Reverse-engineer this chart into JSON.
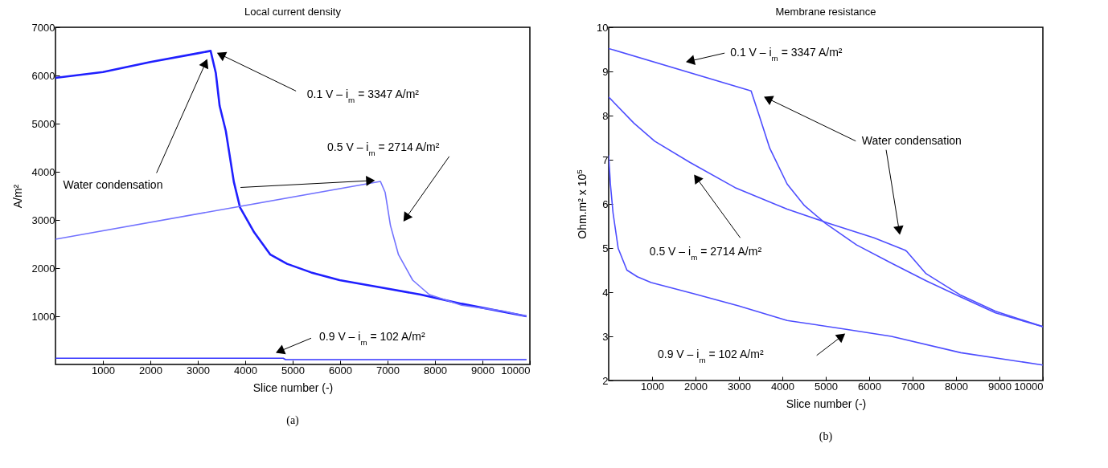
{
  "chart_data": [
    {
      "type": "line",
      "title": "Local current density",
      "xlabel": "Slice number (-)",
      "ylabel": "A/m²",
      "xlim": [
        0,
        10000
      ],
      "xticks": [
        1000,
        2000,
        3000,
        4000,
        5000,
        6000,
        7000,
        8000,
        9000,
        10000
      ],
      "ylim": [
        0,
        7000
      ],
      "yticks": [
        1000,
        2000,
        3000,
        4000,
        5000,
        6000,
        7000
      ],
      "grid": false,
      "series": [
        {
          "color": "#1f1fff",
          "x": [
            0,
            1000,
            2000,
            3000,
            3270,
            3380,
            3460,
            3590,
            3760,
            3890,
            4190,
            4530,
            4880,
            5390,
            5990,
            6850,
            7700,
            8560,
            9930
          ],
          "values": [
            5950,
            6070,
            6280,
            6460,
            6510,
            6050,
            5370,
            4850,
            3790,
            3260,
            2740,
            2280,
            2090,
            1910,
            1750,
            1600,
            1450,
            1260,
            1000
          ]
        },
        {
          "color": "#7272ff",
          "x": [
            0,
            6850,
            6950,
            7060,
            7230,
            7530,
            7880,
            8560,
            9420,
            9930
          ],
          "values": [
            2600,
            3800,
            3570,
            2890,
            2280,
            1750,
            1450,
            1230,
            1110,
            1000
          ]
        },
        {
          "color": "#3535ff",
          "x": [
            0,
            4800,
            4850,
            9930
          ],
          "values": [
            130,
            130,
            100,
            100
          ]
        }
      ],
      "annotations": [
        "0.1 V – i$_{m}$ = 3347 A/m²",
        "Water condensation",
        "0.5 V – i$_{m}$ = 2714 A/m²",
        "0.9 V – i$_{m}$ = 102 A/m²",
        "(a)"
      ]
    },
    {
      "type": "line",
      "title": "Membrane resistance",
      "xlabel": "Slice number (-)",
      "ylabel": "Ohm.m² x 10$^{5}$",
      "xlim": [
        0,
        10000
      ],
      "xticks": [
        1000,
        2000,
        3000,
        4000,
        5000,
        6000,
        7000,
        8000,
        9000,
        10000
      ],
      "ylim": [
        2,
        10
      ],
      "yticks": [
        2,
        3,
        4,
        5,
        6,
        7,
        8,
        9,
        10
      ],
      "grid": false,
      "series": [
        {
          "color": "#4d4dff",
          "x": [
            0,
            3280,
            3470,
            3710,
            4110,
            4510,
            4990,
            5710,
            6510,
            7310,
            8110,
            8910,
            10000
          ],
          "values": [
            9.52,
            8.56,
            7.99,
            7.26,
            6.45,
            5.96,
            5.56,
            5.07,
            4.66,
            4.26,
            3.89,
            3.53,
            3.22
          ]
        },
        {
          "color": "#4d4dff",
          "x": [
            0,
            580,
            1060,
            1870,
            2910,
            4110,
            5070,
            6110,
            6830,
            6870,
            7310,
            8110,
            8910,
            10000
          ],
          "values": [
            8.42,
            7.83,
            7.42,
            6.94,
            6.37,
            5.88,
            5.56,
            5.23,
            4.95,
            4.92,
            4.42,
            3.93,
            3.57,
            3.22
          ]
        },
        {
          "color": "#4d4dff",
          "x": [
            0,
            40,
            100,
            220,
            420,
            660,
            980,
            1950,
            2990,
            4110,
            5470,
            6510,
            8110,
            10000
          ],
          "values": [
            7.1,
            6.45,
            5.8,
            4.99,
            4.5,
            4.35,
            4.22,
            3.97,
            3.69,
            3.36,
            3.16,
            3.0,
            2.63,
            2.35
          ]
        }
      ],
      "annotations": [
        "0.1 V – i$_{m}$ = 3347 A/m²",
        "Water condensation",
        "0.5 V – i$_{m}$ = 2714 A/m²",
        "0.9 V – i$_{m}$ = 102 A/m²",
        "(b)"
      ]
    }
  ]
}
